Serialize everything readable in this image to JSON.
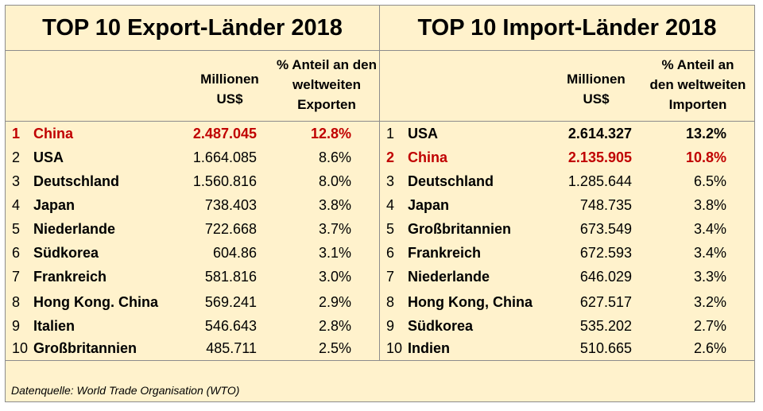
{
  "export": {
    "title": "TOP 10 Export-Länder 2018",
    "col_value": [
      "Millionen",
      "US$"
    ],
    "col_share": [
      "% Anteil an den",
      "weltweiten",
      "Exporten"
    ],
    "rows": [
      {
        "rank": "1",
        "country": "China",
        "value": "2.487.045",
        "share": "12.8%"
      },
      {
        "rank": "2",
        "country": "USA",
        "value": "1.664.085",
        "share": "8.6%"
      },
      {
        "rank": "3",
        "country": "Deutschland",
        "value": "1.560.816",
        "share": "8.0%"
      },
      {
        "rank": "4",
        "country": "Japan",
        "value": "738.403",
        "share": "3.8%"
      },
      {
        "rank": "5",
        "country": "Niederlande",
        "value": "722.668",
        "share": "3.7%"
      },
      {
        "rank": "6",
        "country": "Südkorea",
        "value": "604.86",
        "share": "3.1%"
      },
      {
        "rank": "7",
        "country": "Frankreich",
        "value": "581.816",
        "share": "3.0%"
      },
      {
        "rank": "8",
        "country": "Hong Kong. China",
        "value": "569.241",
        "share": "2.9%"
      },
      {
        "rank": "9",
        "country": "Italien",
        "value": "546.643",
        "share": "2.8%"
      },
      {
        "rank": "10",
        "country": "Großbritannien",
        "value": "485.711",
        "share": "2.5%"
      }
    ]
  },
  "import": {
    "title": "TOP 10 Import-Länder 2018",
    "col_value": [
      "Millionen",
      "US$"
    ],
    "col_share": [
      "% Anteil an",
      "den weltweiten",
      "Importen"
    ],
    "rows": [
      {
        "rank": "1",
        "country": "USA",
        "value": "2.614.327",
        "share": "13.2%"
      },
      {
        "rank": "2",
        "country": "China",
        "value": "2.135.905",
        "share": "10.8%"
      },
      {
        "rank": "3",
        "country": "Deutschland",
        "value": "1.285.644",
        "share": "6.5%"
      },
      {
        "rank": "4",
        "country": "Japan",
        "value": "748.735",
        "share": "3.8%"
      },
      {
        "rank": "5",
        "country": "Großbritannien",
        "value": "673.549",
        "share": "3.4%"
      },
      {
        "rank": "6",
        "country": "Frankreich",
        "value": "672.593",
        "share": "3.4%"
      },
      {
        "rank": "7",
        "country": "Niederlande",
        "value": "646.029",
        "share": "3.3%"
      },
      {
        "rank": "8",
        "country": "Hong Kong, China",
        "value": "627.517",
        "share": "3.2%"
      },
      {
        "rank": "9",
        "country": "Südkorea",
        "value": "535.202",
        "share": "2.7%"
      },
      {
        "rank": "10",
        "country": "Indien",
        "value": "510.665",
        "share": "2.6%"
      }
    ]
  },
  "source": "Datenquelle: World Trade Organisation (WTO)",
  "colors": {
    "background": "#fff2cc",
    "highlight": "#c00000",
    "border": "#8c8c8c"
  }
}
